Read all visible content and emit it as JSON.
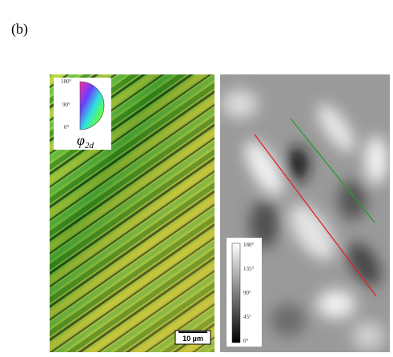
{
  "panel_label": "(b)",
  "left_map": {
    "legend": {
      "labels": [
        "180°",
        "90°",
        "0°"
      ],
      "symbol": "φ",
      "subscript": "2d"
    },
    "scale_bar": "10 µm"
  },
  "right_map": {
    "colorbar": {
      "labels": [
        "180°",
        "135°",
        "90°",
        "45°",
        "0°"
      ]
    }
  }
}
